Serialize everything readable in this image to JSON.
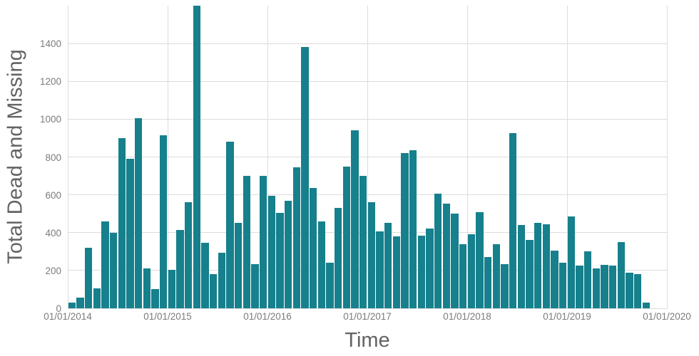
{
  "chart_data": {
    "type": "bar",
    "title": "",
    "xlabel": "Time",
    "ylabel": "Total Dead and Missing",
    "x": [
      "01/2014",
      "02/2014",
      "03/2014",
      "04/2014",
      "05/2014",
      "06/2014",
      "07/2014",
      "08/2014",
      "09/2014",
      "10/2014",
      "11/2014",
      "12/2014",
      "01/2015",
      "02/2015",
      "03/2015",
      "04/2015",
      "05/2015",
      "06/2015",
      "07/2015",
      "08/2015",
      "09/2015",
      "10/2015",
      "11/2015",
      "12/2015",
      "01/2016",
      "02/2016",
      "03/2016",
      "04/2016",
      "05/2016",
      "06/2016",
      "07/2016",
      "08/2016",
      "09/2016",
      "10/2016",
      "11/2016",
      "12/2016",
      "01/2017",
      "02/2017",
      "03/2017",
      "04/2017",
      "05/2017",
      "06/2017",
      "07/2017",
      "08/2017",
      "09/2017",
      "10/2017",
      "11/2017",
      "12/2017",
      "01/2018",
      "02/2018",
      "03/2018",
      "04/2018",
      "05/2018",
      "06/2018",
      "07/2018",
      "08/2018",
      "09/2018",
      "10/2018",
      "11/2018",
      "12/2018",
      "01/2019",
      "02/2019",
      "03/2019",
      "04/2019",
      "05/2019",
      "06/2019",
      "07/2019",
      "08/2019",
      "09/2019",
      "10/2019"
    ],
    "values": [
      30,
      55,
      320,
      105,
      460,
      400,
      900,
      790,
      1005,
      210,
      100,
      915,
      205,
      415,
      560,
      1600,
      345,
      180,
      295,
      880,
      450,
      700,
      235,
      700,
      595,
      505,
      570,
      745,
      1380,
      635,
      460,
      240,
      530,
      750,
      940,
      700,
      560,
      405,
      450,
      380,
      820,
      835,
      385,
      420,
      605,
      555,
      500,
      340,
      390,
      510,
      270,
      340,
      235,
      925,
      440,
      360,
      450,
      445,
      305,
      240,
      485,
      225,
      300,
      210,
      230,
      225,
      350,
      190,
      180,
      30
    ],
    "xticks": [
      "01/01/2014",
      "01/01/2015",
      "01/01/2016",
      "01/01/2017",
      "01/01/2018",
      "01/01/2019",
      "01/01/2020"
    ],
    "yticks": [
      0,
      200,
      400,
      600,
      800,
      1000,
      1200,
      1400
    ],
    "ylim": [
      0,
      1600
    ],
    "legend": "none",
    "grid": true,
    "bar_color": "#16808c",
    "gridline_color": "#dcdcdc",
    "tick_color": "#7b7b7b",
    "axis_title_color": "#636363",
    "background": "#ffffff"
  }
}
